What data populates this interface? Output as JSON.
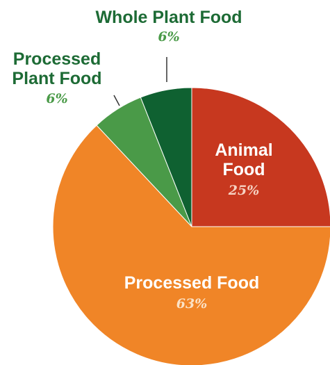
{
  "chart_data": {
    "type": "pie",
    "slices": [
      {
        "label": "Animal Food",
        "label_lines": [
          "Animal",
          "Food"
        ],
        "value": 25,
        "display": "25%",
        "color": "#c7381f",
        "label_color": "#ffffff",
        "pct_color": "#f6d2c3"
      },
      {
        "label": "Processed Food",
        "label_lines": [
          "Processed Food"
        ],
        "value": 63,
        "display": "63%",
        "color": "#f08527",
        "label_color": "#ffffff",
        "pct_color": "#fbe2c6"
      },
      {
        "label": "Processed Plant Food",
        "label_lines": [
          "Processed",
          "Plant Food"
        ],
        "value": 6,
        "display": "6%",
        "color": "#4a9a48",
        "label_color": "#1d6b35",
        "pct_color": "#4a9a48"
      },
      {
        "label": "Whole Plant Food",
        "label_lines": [
          "Whole Plant Food"
        ],
        "value": 6,
        "display": "6%",
        "color": "#0f6131",
        "label_color": "#1d6b35",
        "pct_color": "#4a9a48"
      }
    ]
  }
}
